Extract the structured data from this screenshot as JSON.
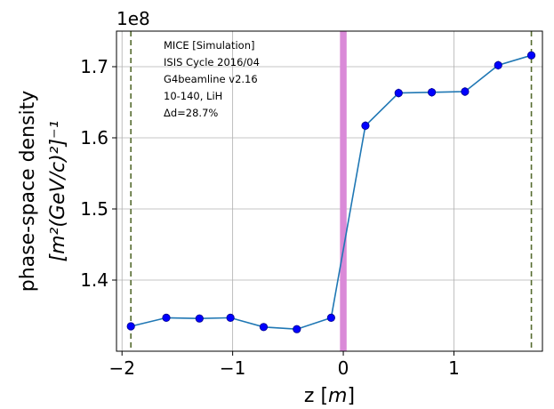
{
  "chart_data": {
    "type": "line",
    "xlabel": "z [m]",
    "ylabel_line1": "phase-space density",
    "ylabel_line2": "[m²(GeV/c)²]⁻¹",
    "y_offset_label": "1e8",
    "xlim": [
      -2.05,
      1.8
    ],
    "ylim": [
      130000000.0,
      175000000.0
    ],
    "xticks": [
      -2,
      -1,
      0,
      1
    ],
    "xtick_labels": [
      "−2",
      "−1",
      "0",
      "1"
    ],
    "yticks": [
      140000000.0,
      150000000.0,
      160000000.0,
      170000000.0
    ],
    "ytick_labels": [
      "1.4",
      "1.5",
      "1.6",
      "1.7"
    ],
    "grid": true,
    "series": [
      {
        "x": [
          -1.92,
          -1.6,
          -1.3,
          -1.02,
          -0.72,
          -0.42,
          -0.11,
          0.2,
          0.5,
          0.8,
          1.1,
          1.4,
          1.7
        ],
        "y": [
          133500000.0,
          134700000.0,
          134600000.0,
          134700000.0,
          133400000.0,
          133100000.0,
          134700000.0,
          161700000.0,
          166300000.0,
          166400000.0,
          166500000.0,
          170200000.0,
          171600000.0
        ],
        "yerr": [
          350000.0,
          400000.0,
          400000.0,
          350000.0,
          350000.0,
          350000.0,
          350000.0,
          600000.0,
          600000.0,
          600000.0,
          600000.0,
          600000.0,
          500000.0
        ],
        "line_color": "#1f77b4",
        "marker_color": "#0000ff"
      }
    ],
    "vertical_lines": [
      {
        "x": -1.92,
        "style": "dashed",
        "color": "#556b2f"
      },
      {
        "x": 1.7,
        "style": "dashed",
        "color": "#556b2f"
      }
    ],
    "vertical_band": {
      "x0": -0.03,
      "x1": 0.03,
      "color": "#da8ad8"
    },
    "annotations": [
      "MICE [Simulation]",
      "ISIS Cycle 2016/04",
      "G4beamline v2.16",
      "10-140, LiH",
      "Δd=28.7%"
    ]
  }
}
